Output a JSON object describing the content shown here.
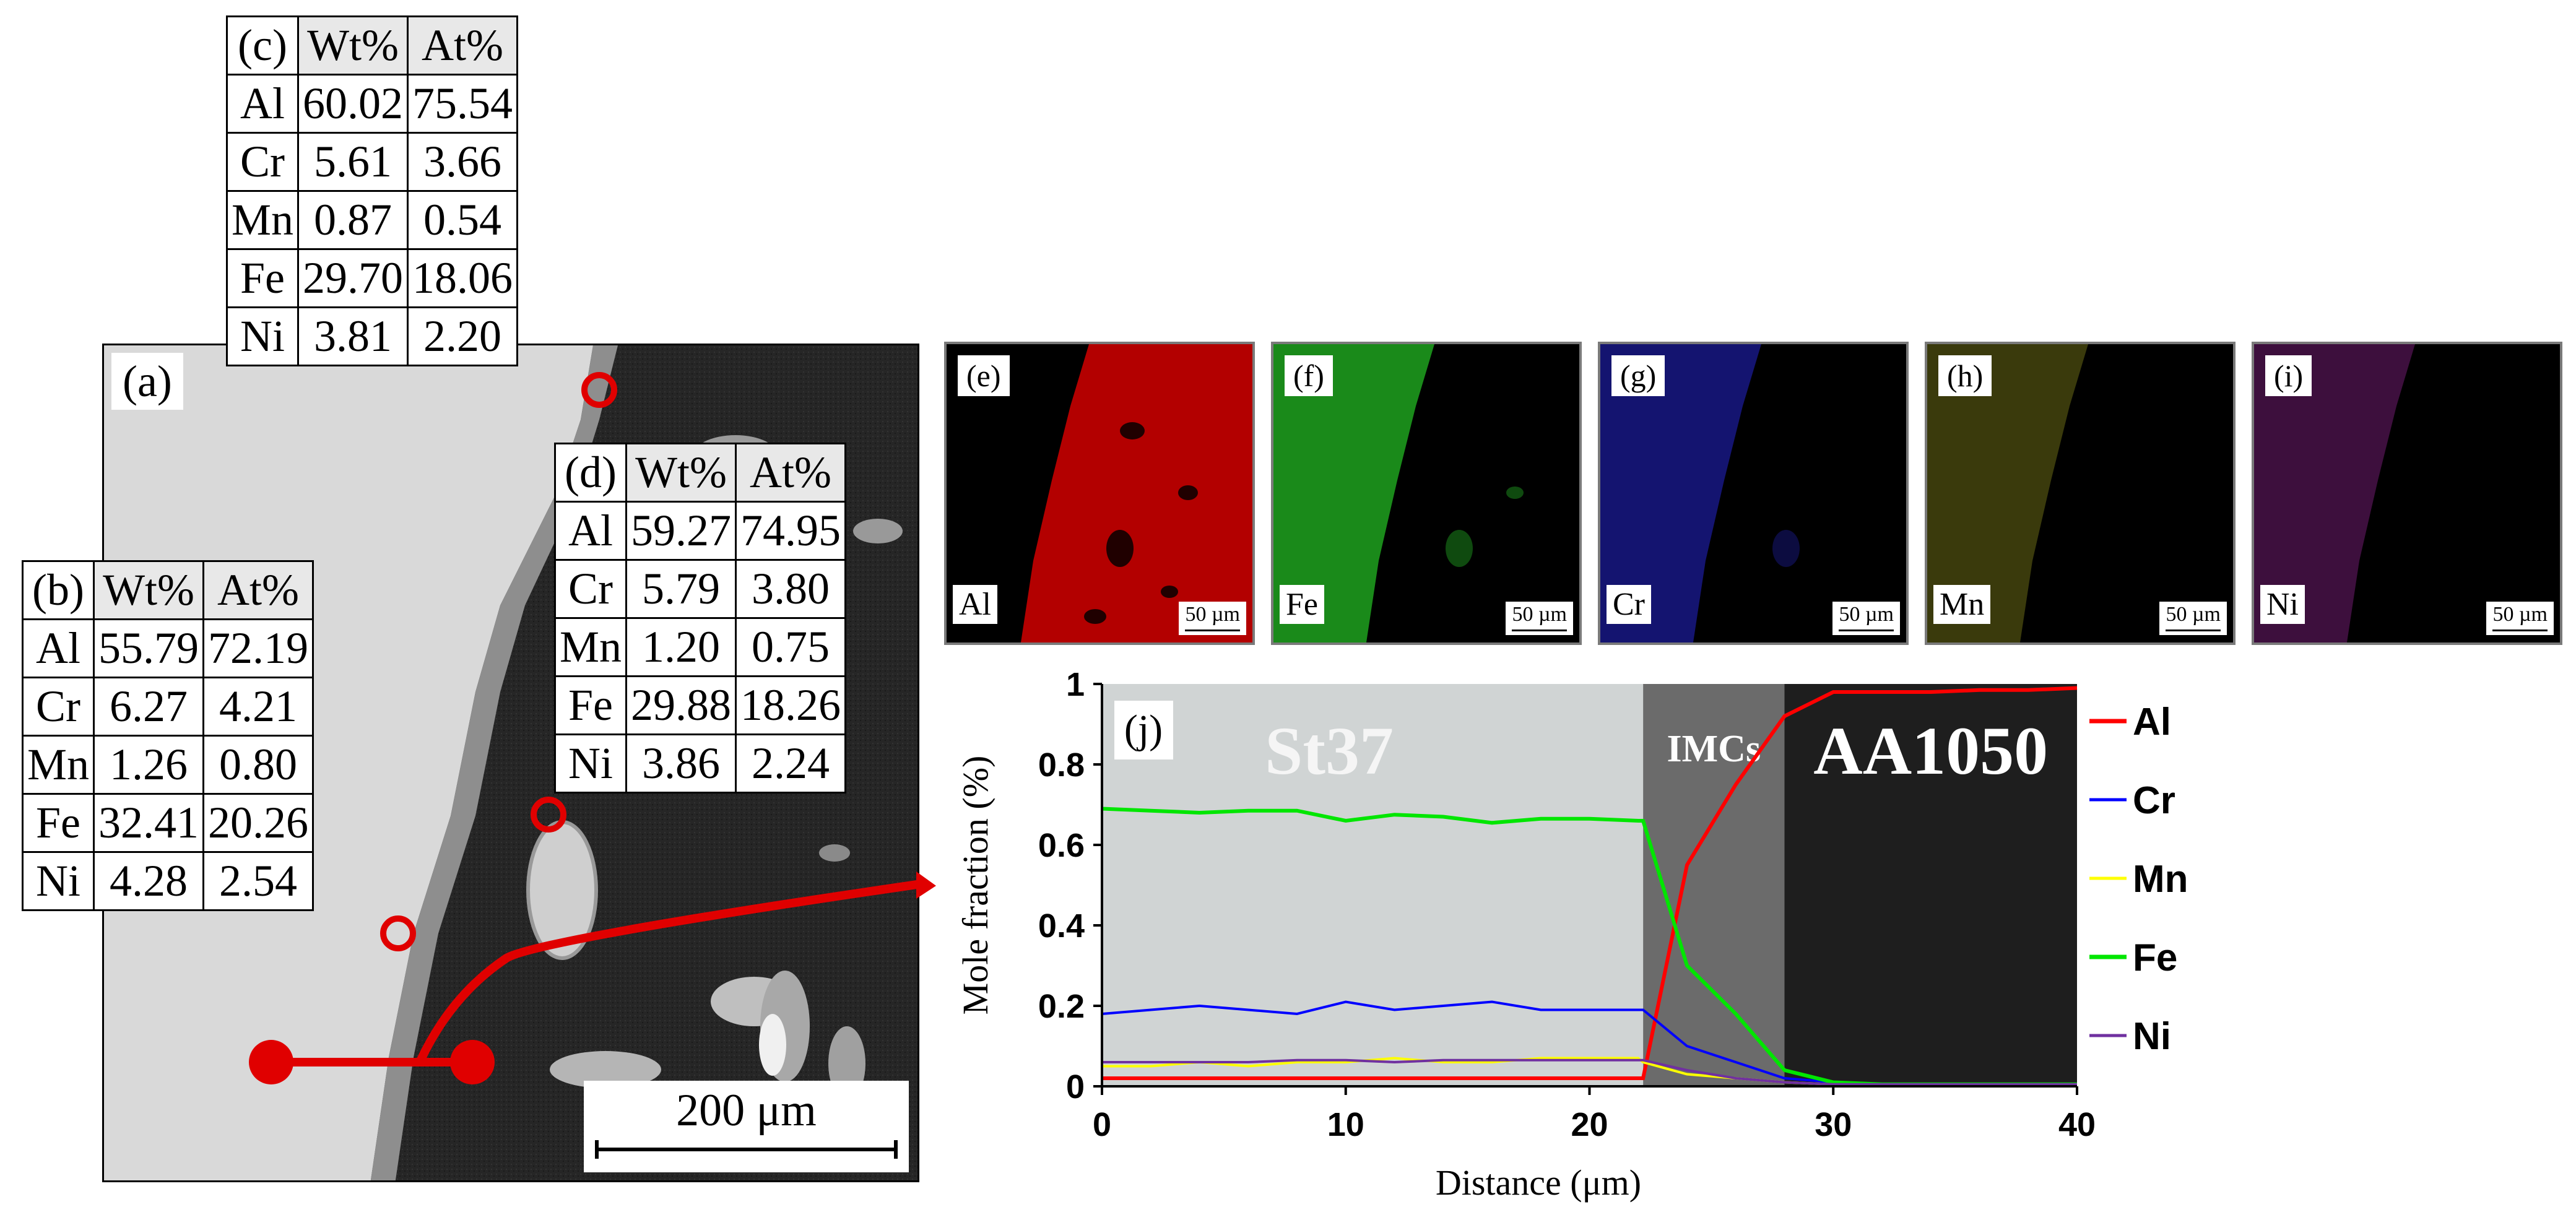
{
  "panels": {
    "a": "(a)",
    "b": "(b)",
    "c": "(c)",
    "d": "(d)",
    "e": "(e)",
    "f": "(f)",
    "g": "(g)",
    "h": "(h)",
    "i": "(i)",
    "j": "(j)"
  },
  "sem_scale_bar": "200 μm",
  "tables": {
    "c": {
      "headers": [
        "Wt%",
        "At%"
      ],
      "rows": [
        [
          "Al",
          "60.02",
          "75.54"
        ],
        [
          "Cr",
          "5.61",
          "3.66"
        ],
        [
          "Mn",
          "0.87",
          "0.54"
        ],
        [
          "Fe",
          "29.70",
          "18.06"
        ],
        [
          "Ni",
          "3.81",
          "2.20"
        ]
      ]
    },
    "d": {
      "headers": [
        "Wt%",
        "At%"
      ],
      "rows": [
        [
          "Al",
          "59.27",
          "74.95"
        ],
        [
          "Cr",
          "5.79",
          "3.80"
        ],
        [
          "Mn",
          "1.20",
          "0.75"
        ],
        [
          "Fe",
          "29.88",
          "18.26"
        ],
        [
          "Ni",
          "3.86",
          "2.24"
        ]
      ]
    },
    "b": {
      "headers": [
        "Wt%",
        "At%"
      ],
      "rows": [
        [
          "Al",
          "55.79",
          "72.19"
        ],
        [
          "Cr",
          "6.27",
          "4.21"
        ],
        [
          "Mn",
          "1.26",
          "0.80"
        ],
        [
          "Fe",
          "32.41",
          "20.26"
        ],
        [
          "Ni",
          "4.28",
          "2.54"
        ]
      ]
    }
  },
  "maps": [
    {
      "tag": "(e)",
      "element": "Al",
      "color": "#c00000",
      "scale": "50 µm"
    },
    {
      "tag": "(f)",
      "element": "Fe",
      "color": "#1f8a1f",
      "scale": "50 µm"
    },
    {
      "tag": "(g)",
      "element": "Cr",
      "color": "#1c1c9a",
      "scale": "50 µm"
    },
    {
      "tag": "(h)",
      "element": "Mn",
      "color": "#7a7a18",
      "scale": "50 µm"
    },
    {
      "tag": "(i)",
      "element": "Ni",
      "color": "#7a1c7a",
      "scale": "50 µm"
    }
  ],
  "chart_data": {
    "type": "line",
    "title": "",
    "xlabel": "Distance (μm)",
    "ylabel": "Mole fraction (%)",
    "xlim": [
      0,
      40
    ],
    "ylim": [
      0,
      1
    ],
    "xticks": [
      "0",
      "10",
      "20",
      "30",
      "40"
    ],
    "yticks": [
      "0",
      "0.2",
      "0.4",
      "0.6",
      "0.8",
      "1"
    ],
    "regions": [
      {
        "label": "St37",
        "from": 0,
        "to": 22.2,
        "color": "#d0d4d4"
      },
      {
        "label": "IMCs",
        "from": 22.2,
        "to": 28,
        "color": "#6b6b6b"
      },
      {
        "label": "AA1050",
        "from": 28,
        "to": 40,
        "color": "#1e1e1e"
      }
    ],
    "series": [
      {
        "name": "Al",
        "color": "#ff0000",
        "x": [
          0,
          2,
          4,
          6,
          8,
          10,
          12,
          14,
          16,
          18,
          20,
          22,
          22.2,
          24,
          26,
          28,
          30,
          32,
          34,
          36,
          38,
          40
        ],
        "y": [
          0.02,
          0.02,
          0.02,
          0.02,
          0.02,
          0.02,
          0.02,
          0.02,
          0.02,
          0.02,
          0.02,
          0.02,
          0.02,
          0.55,
          0.75,
          0.92,
          0.98,
          0.98,
          0.98,
          0.985,
          0.985,
          0.99
        ]
      },
      {
        "name": "Cr",
        "color": "#0000ff",
        "x": [
          0,
          2,
          4,
          6,
          8,
          10,
          12,
          14,
          16,
          18,
          20,
          22,
          22.2,
          24,
          26,
          28,
          30,
          32,
          34,
          36,
          38,
          40
        ],
        "y": [
          0.18,
          0.19,
          0.2,
          0.19,
          0.18,
          0.21,
          0.19,
          0.2,
          0.21,
          0.19,
          0.19,
          0.19,
          0.19,
          0.1,
          0.06,
          0.02,
          0.01,
          0.005,
          0.005,
          0.005,
          0.005,
          0.005
        ]
      },
      {
        "name": "Mn",
        "color": "#ffff00",
        "x": [
          0,
          2,
          4,
          6,
          8,
          10,
          12,
          14,
          16,
          18,
          20,
          22,
          22.2,
          24,
          26,
          28,
          30,
          32,
          34,
          36,
          38,
          40
        ],
        "y": [
          0.05,
          0.05,
          0.06,
          0.05,
          0.06,
          0.06,
          0.07,
          0.06,
          0.06,
          0.07,
          0.07,
          0.07,
          0.06,
          0.03,
          0.02,
          0.01,
          0.005,
          0.005,
          0.005,
          0.005,
          0.005,
          0.005
        ]
      },
      {
        "name": "Fe",
        "color": "#00e600",
        "x": [
          0,
          2,
          4,
          6,
          8,
          10,
          12,
          14,
          16,
          18,
          20,
          22,
          22.2,
          24,
          26,
          28,
          30,
          32,
          34,
          36,
          38,
          40
        ],
        "y": [
          0.69,
          0.685,
          0.68,
          0.685,
          0.685,
          0.66,
          0.675,
          0.67,
          0.655,
          0.665,
          0.665,
          0.66,
          0.66,
          0.3,
          0.18,
          0.04,
          0.01,
          0.005,
          0.005,
          0.005,
          0.005,
          0.005
        ]
      },
      {
        "name": "Ni",
        "color": "#7030a0",
        "x": [
          0,
          2,
          4,
          6,
          8,
          10,
          12,
          14,
          16,
          18,
          20,
          22,
          22.2,
          24,
          26,
          28,
          30,
          32,
          34,
          36,
          38,
          40
        ],
        "y": [
          0.06,
          0.06,
          0.06,
          0.06,
          0.065,
          0.065,
          0.06,
          0.065,
          0.065,
          0.065,
          0.065,
          0.065,
          0.065,
          0.04,
          0.02,
          0.01,
          0.005,
          0.005,
          0.005,
          0.005,
          0.005,
          0.005
        ]
      }
    ]
  }
}
